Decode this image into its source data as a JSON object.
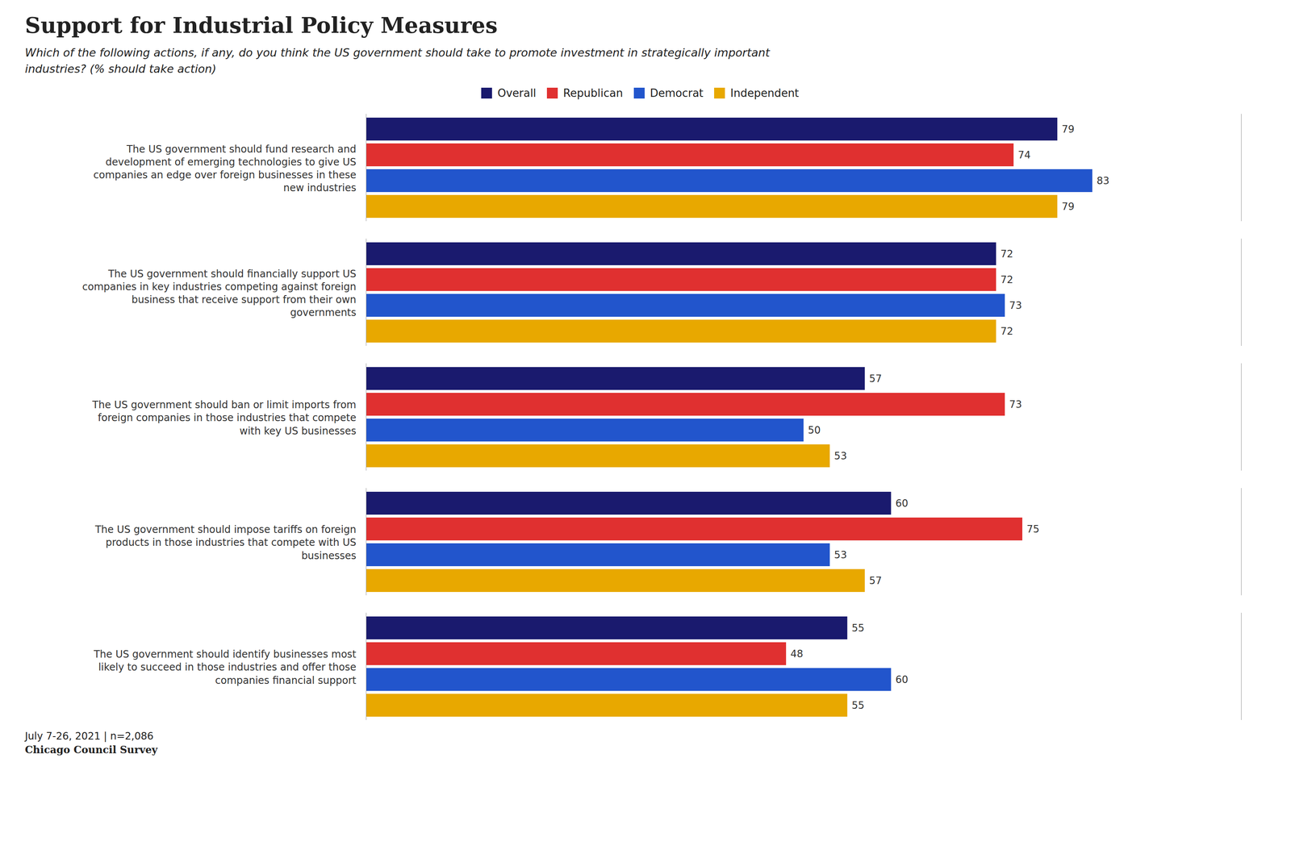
{
  "chart_data": {
    "type": "bar",
    "orientation": "horizontal",
    "title": "Support for Industrial Policy Measures",
    "subtitle": "Which of the following actions, if any, do you think the US government should take to promote investment in strategically important\nindustries? (% should take action)",
    "annotations": [
      "July 7-26, 2021 | n=2,086",
      "Chicago Council Survey"
    ],
    "categories": [
      "The US government should fund research and\ndevelopment of emerging technologies to give US\ncompanies an edge over foreign businesses in these\nnew industries",
      "The US government should financially support US\ncompanies in key industries competing against foreign\nbusiness that receive support from their own\ngovernments",
      "The US government should ban or limit imports from\nforeign companies in those industries that compete\nwith key US businesses",
      "The US government should impose tariffs on foreign\nproducts in those industries that compete with US\nbusinesses",
      "The US government should identify businesses most\nlikely to succeed in those industries and offer those\ncompanies financial support"
    ],
    "series": [
      {
        "name": "Overall",
        "color": "#1a1a6e",
        "values": [
          79,
          72,
          57,
          60,
          55
        ]
      },
      {
        "name": "Republican",
        "color": "#e03030",
        "values": [
          74,
          72,
          73,
          75,
          48
        ]
      },
      {
        "name": "Democrat",
        "color": "#2255cc",
        "values": [
          83,
          73,
          50,
          53,
          60
        ]
      },
      {
        "name": "Independent",
        "color": "#e8a800",
        "values": [
          79,
          72,
          53,
          57,
          55
        ]
      }
    ],
    "xlim": [
      0,
      100
    ],
    "grid": false,
    "legend": "top",
    "data_labels": true,
    "tick_labels": "y"
  }
}
